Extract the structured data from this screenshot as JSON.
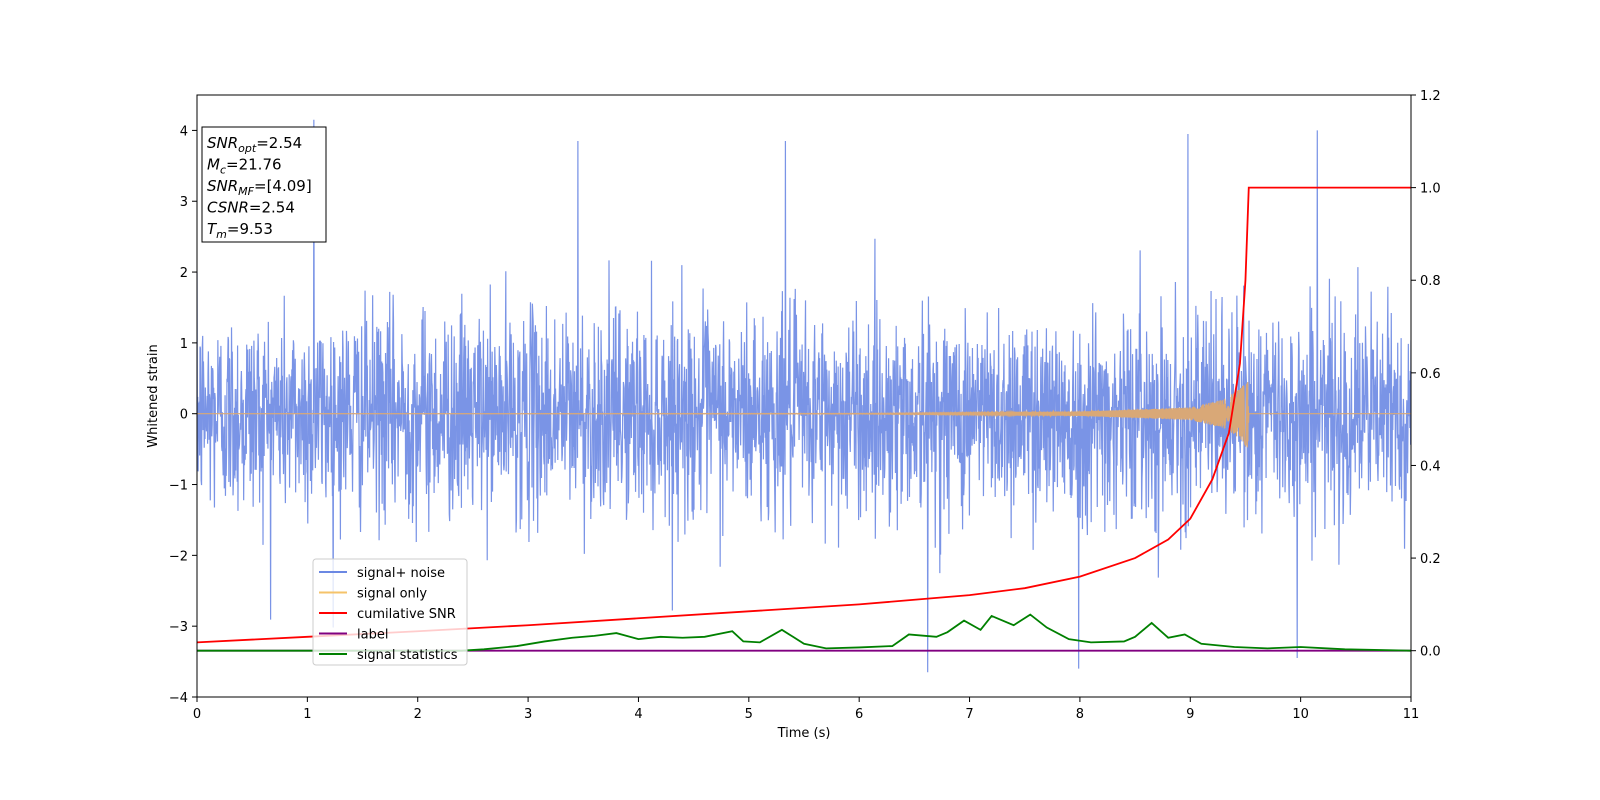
{
  "chart_data": {
    "type": "line",
    "xlabel": "Time (s)",
    "ylabel": "Whitened strain",
    "xlim": [
      0,
      11
    ],
    "ylim": [
      -4,
      4.5
    ],
    "y2lim": [
      -0.1,
      1.2
    ],
    "x_ticks": [
      "0",
      "1",
      "2",
      "3",
      "4",
      "5",
      "6",
      "7",
      "8",
      "9",
      "10",
      "11"
    ],
    "y_ticks": [
      "−4",
      "−3",
      "−2",
      "−1",
      "0",
      "1",
      "2",
      "3",
      "4"
    ],
    "y2_ticks": [
      "0.0",
      "0.2",
      "0.4",
      "0.6",
      "0.8",
      "1.0",
      "1.2"
    ],
    "annotation": {
      "lines": [
        {
          "main": "SNR",
          "sub": "opt",
          "value": "=2.54"
        },
        {
          "main": "M",
          "sub": "c",
          "value": "=21.76"
        },
        {
          "main": "SNR",
          "sub": "MF",
          "value": "=[4.09]"
        },
        {
          "main": "CSNR",
          "sub": "",
          "value": "=2.54"
        },
        {
          "main": "T",
          "sub": "m",
          "value": "=9.53"
        }
      ]
    },
    "legend": {
      "placement": "lower-left",
      "entries": [
        {
          "label": "signal+ noise",
          "color": "#6b88e3"
        },
        {
          "label": "signal only",
          "color": "#f5c36a"
        },
        {
          "label": "cumilative SNR",
          "color": "#ff0000"
        },
        {
          "label": "label",
          "color": "#800080"
        },
        {
          "label": "signal statistics",
          "color": "#008000"
        }
      ]
    },
    "series": [
      {
        "name": "signal+ noise",
        "axis": "left",
        "color": "#6b88e3",
        "noise_std": 0.72,
        "notable_peaks": [
          [
            1.06,
            4.15
          ],
          [
            3.45,
            3.85
          ],
          [
            5.33,
            3.85
          ],
          [
            8.98,
            3.95
          ],
          [
            10.15,
            4.0
          ],
          [
            6.62,
            -3.65
          ],
          [
            7.99,
            -3.6
          ],
          [
            9.97,
            -3.45
          ]
        ]
      },
      {
        "name": "signal only",
        "axis": "left",
        "color": "#f5c36a",
        "envelope": [
          [
            0,
            0.0
          ],
          [
            6.0,
            0.005
          ],
          [
            8.0,
            0.03
          ],
          [
            9.0,
            0.09
          ],
          [
            9.3,
            0.2
          ],
          [
            9.45,
            0.35
          ],
          [
            9.53,
            0.5
          ]
        ],
        "end_time": 9.53
      },
      {
        "name": "cumilative SNR",
        "axis": "right",
        "color": "#ff0000",
        "points": [
          [
            0,
            0.018
          ],
          [
            1,
            0.03
          ],
          [
            2,
            0.042
          ],
          [
            3,
            0.055
          ],
          [
            4,
            0.07
          ],
          [
            5,
            0.085
          ],
          [
            6,
            0.1
          ],
          [
            7,
            0.12
          ],
          [
            7.5,
            0.135
          ],
          [
            8,
            0.16
          ],
          [
            8.5,
            0.2
          ],
          [
            8.8,
            0.24
          ],
          [
            9.0,
            0.285
          ],
          [
            9.2,
            0.37
          ],
          [
            9.35,
            0.47
          ],
          [
            9.45,
            0.62
          ],
          [
            9.5,
            0.8
          ],
          [
            9.53,
            1.0
          ],
          [
            11,
            1.0
          ]
        ]
      },
      {
        "name": "label",
        "axis": "right",
        "color": "#800080",
        "points": [
          [
            0,
            0.0
          ],
          [
            11,
            0.0
          ]
        ]
      },
      {
        "name": "signal statistics",
        "axis": "right",
        "color": "#008000",
        "points": [
          [
            0,
            0.0
          ],
          [
            2.4,
            0.0
          ],
          [
            2.6,
            0.003
          ],
          [
            2.9,
            0.01
          ],
          [
            3.15,
            0.02
          ],
          [
            3.4,
            0.028
          ],
          [
            3.6,
            0.032
          ],
          [
            3.8,
            0.038
          ],
          [
            4.0,
            0.025
          ],
          [
            4.2,
            0.03
          ],
          [
            4.4,
            0.028
          ],
          [
            4.6,
            0.03
          ],
          [
            4.85,
            0.042
          ],
          [
            4.95,
            0.02
          ],
          [
            5.1,
            0.018
          ],
          [
            5.3,
            0.045
          ],
          [
            5.4,
            0.03
          ],
          [
            5.5,
            0.015
          ],
          [
            5.7,
            0.005
          ],
          [
            6.0,
            0.007
          ],
          [
            6.3,
            0.01
          ],
          [
            6.45,
            0.035
          ],
          [
            6.7,
            0.03
          ],
          [
            6.8,
            0.04
          ],
          [
            6.95,
            0.065
          ],
          [
            7.1,
            0.045
          ],
          [
            7.2,
            0.075
          ],
          [
            7.4,
            0.055
          ],
          [
            7.55,
            0.078
          ],
          [
            7.7,
            0.05
          ],
          [
            7.9,
            0.025
          ],
          [
            8.1,
            0.018
          ],
          [
            8.4,
            0.02
          ],
          [
            8.5,
            0.03
          ],
          [
            8.65,
            0.06
          ],
          [
            8.8,
            0.028
          ],
          [
            8.95,
            0.035
          ],
          [
            9.1,
            0.015
          ],
          [
            9.4,
            0.008
          ],
          [
            9.7,
            0.005
          ],
          [
            10.0,
            0.008
          ],
          [
            10.4,
            0.003
          ],
          [
            11,
            0.0
          ]
        ]
      }
    ]
  }
}
